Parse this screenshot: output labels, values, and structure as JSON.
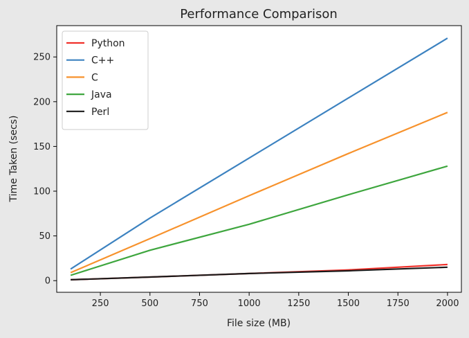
{
  "chart_data": {
    "type": "line",
    "title": "Performance Comparison",
    "xlabel": "File size (MB)",
    "ylabel": "Time Taken (secs)",
    "xlim": [
      30,
      2070
    ],
    "ylim": [
      -13,
      285
    ],
    "x_ticks": [
      250,
      500,
      750,
      1000,
      1250,
      1500,
      1750,
      2000
    ],
    "y_ticks": [
      0,
      50,
      100,
      150,
      200,
      250
    ],
    "grid": false,
    "legend_position": "top-left",
    "x": [
      100,
      500,
      1000,
      1500,
      2000
    ],
    "series": [
      {
        "name": "Python",
        "color": "#f0302a",
        "values": [
          1,
          4,
          8,
          12,
          18
        ]
      },
      {
        "name": "C++",
        "color": "#3c82c0",
        "values": [
          13,
          70,
          137,
          204,
          271
        ]
      },
      {
        "name": "C",
        "color": "#f7922c",
        "values": [
          9,
          47,
          95,
          142,
          188
        ]
      },
      {
        "name": "Java",
        "color": "#3ea63e",
        "values": [
          6,
          34,
          63,
          96,
          128
        ]
      },
      {
        "name": "Perl",
        "color": "#1a1a1a",
        "values": [
          1,
          4,
          8,
          11,
          15
        ]
      }
    ]
  }
}
